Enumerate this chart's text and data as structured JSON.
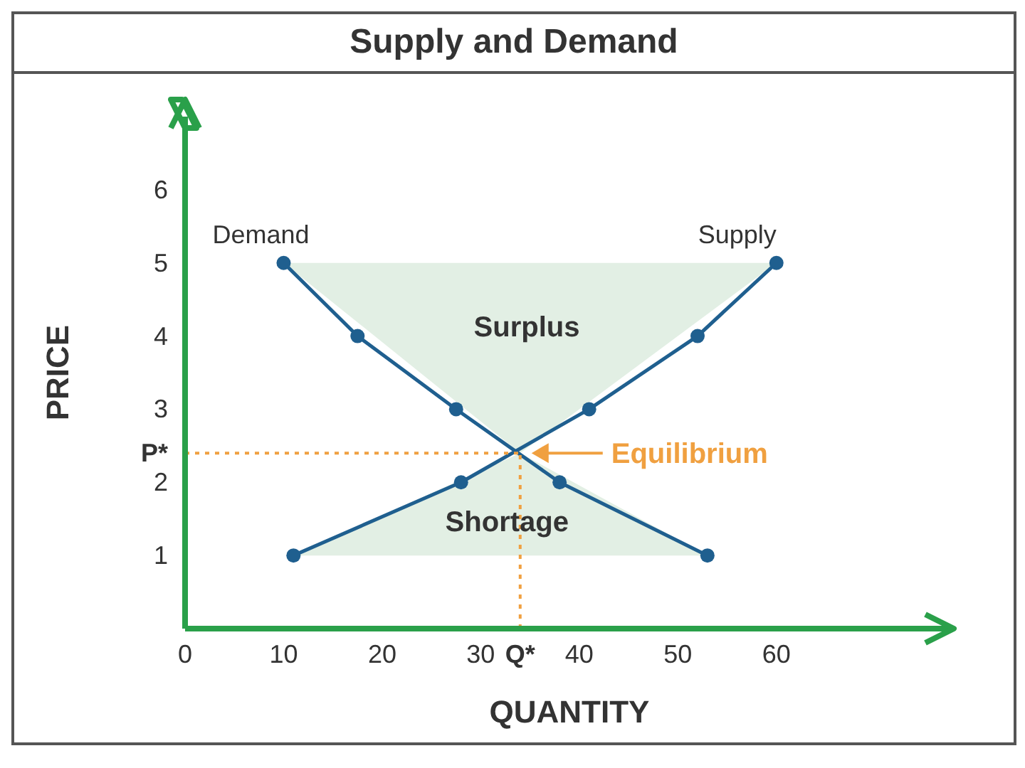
{
  "chart_data": {
    "type": "line",
    "title": "Supply and Demand",
    "xlabel": "QUANTITY",
    "ylabel": "PRICE",
    "xlim": [
      0,
      78
    ],
    "ylim": [
      0,
      7
    ],
    "xticks": [
      0,
      10,
      20,
      30,
      {
        "value": 34,
        "label": "Q*"
      },
      40,
      50,
      60
    ],
    "yticks": [
      1,
      {
        "value": 2.4,
        "label": "P*"
      },
      2,
      3,
      4,
      5,
      6
    ],
    "grid": false,
    "legend": false,
    "line_style": "solid",
    "series": [
      {
        "type": "area",
        "marker": "none",
        "color": "#e2efe4",
        "x": [
          10,
          34,
          60
        ],
        "values": [
          5,
          2.4,
          5
        ]
      },
      {
        "type": "area",
        "marker": "none",
        "color": "#e2efe4",
        "x": [
          11,
          34,
          53
        ],
        "values": [
          1,
          2.4,
          1
        ]
      },
      {
        "name": "Demand",
        "marker": "circle",
        "color": "#1f5f8f",
        "x": [
          10,
          17.5,
          27.5,
          38,
          53
        ],
        "values": [
          5,
          4,
          3,
          2,
          1
        ]
      },
      {
        "name": "Supply",
        "marker": "circle",
        "color": "#1f5f8f",
        "x": [
          11,
          28,
          41,
          52,
          60
        ],
        "values": [
          1,
          2,
          3,
          4,
          5
        ]
      }
    ],
    "ref_lines": [
      {
        "axis": "y",
        "value": 2.4,
        "color": "#f0a040",
        "line_style": "dotted"
      },
      {
        "axis": "x",
        "value": 34,
        "color": "#f0a040",
        "line_style": "dotted"
      }
    ],
    "annotations": [
      "Equilibrium",
      "Surplus",
      "Shortage"
    ]
  }
}
